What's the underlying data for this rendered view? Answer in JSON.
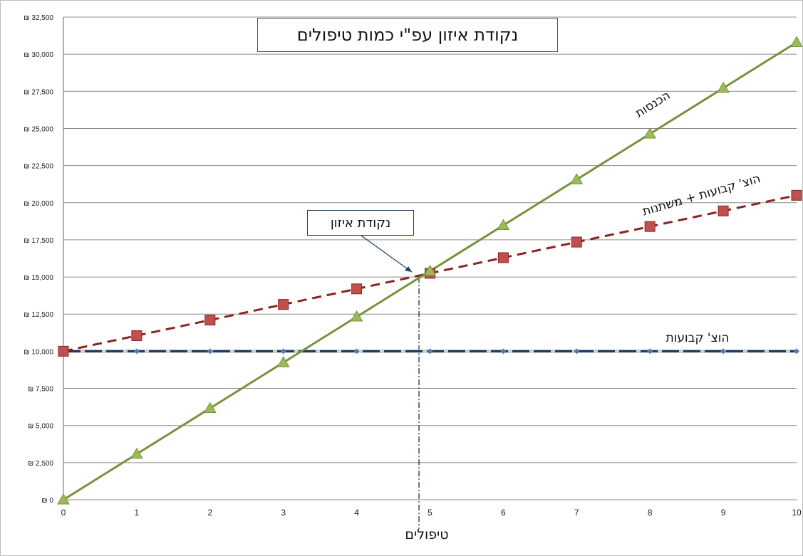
{
  "chart_data": {
    "type": "line",
    "title": "נקודת איזון עפ\"י כמות טיפולים",
    "xlabel": "טיפולים",
    "ylabel": "",
    "x": [
      0,
      1,
      2,
      3,
      4,
      5,
      6,
      7,
      8,
      9,
      10
    ],
    "xlim": [
      0,
      10
    ],
    "ylim": [
      0,
      32500
    ],
    "ytick_step": 2500,
    "ytick_labels": [
      "₪ 0",
      "₪ 2,500",
      "₪ 5,000",
      "₪ 7,500",
      "₪ 10,000",
      "₪ 12,500",
      "₪ 15,000",
      "₪ 17,500",
      "₪ 20,000",
      "₪ 22,500",
      "₪ 25,000",
      "₪ 27,500",
      "₪ 30,000",
      "₪ 32,500"
    ],
    "xtick_labels": [
      "0",
      "1",
      "2",
      "3",
      "4",
      "5",
      "6",
      "7",
      "8",
      "9",
      "10"
    ],
    "grid": true,
    "series": [
      {
        "name": "הכנסות",
        "color": "#76923c",
        "marker": "triangle",
        "values": [
          0,
          3080,
          6160,
          9240,
          12320,
          15400,
          18480,
          21560,
          24640,
          27720,
          30800
        ]
      },
      {
        "name": "הוצ' קבועות + משתנות",
        "color": "#8b2322",
        "marker": "square",
        "values": [
          10000,
          11050,
          12100,
          13150,
          14200,
          15250,
          16300,
          17350,
          18400,
          19450,
          20500
        ]
      },
      {
        "name": "הוצ' קבועות",
        "color": "#17375e",
        "marker": "diamond",
        "values": [
          10000,
          10000,
          10000,
          10000,
          10000,
          10000,
          10000,
          10000,
          10000,
          10000,
          10000
        ]
      }
    ],
    "break_even": {
      "label": "נקודת איזון",
      "x": 4.85,
      "y": 15000
    }
  },
  "colors": {
    "grid": "#8c8c8c",
    "axis": "#666666",
    "marker_edge": "#c0504d"
  }
}
